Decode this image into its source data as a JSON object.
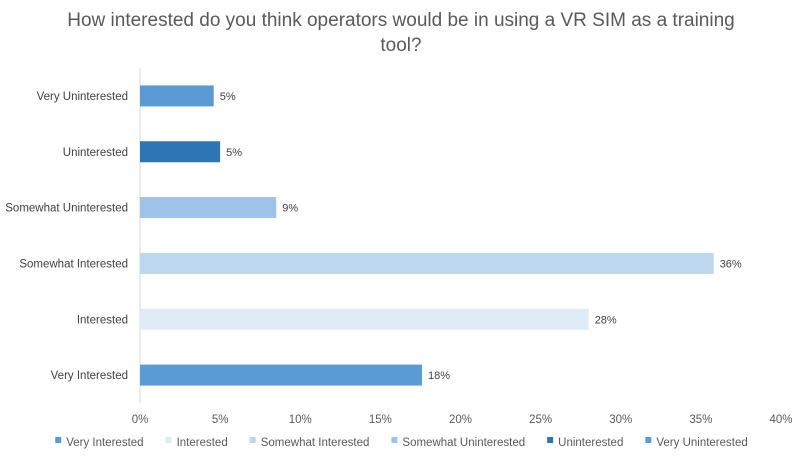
{
  "chart_data": {
    "type": "bar",
    "orientation": "horizontal",
    "title": "How interested do you think operators would be in using a VR SIM as a training tool?",
    "title_lines": [
      "How interested do you think operators would be in using a VR SIM as a training",
      "tool?"
    ],
    "categories": [
      "Very Interested",
      "Interested",
      "Somewhat Interested",
      "Somewhat Uninterested",
      "Uninterested",
      "Very Uninterested"
    ],
    "values": [
      17.6,
      28.0,
      35.8,
      8.5,
      5.0,
      4.6
    ],
    "data_labels": [
      "18%",
      "28%",
      "36%",
      "9%",
      "5%",
      "5%"
    ],
    "colors": [
      "#5b9bd5",
      "#deebf7",
      "#bdd7ee",
      "#9dc3e6",
      "#2e75b6",
      "#5b9bd5"
    ],
    "xlim": [
      0,
      40
    ],
    "x_ticks": [
      0,
      5,
      10,
      15,
      20,
      25,
      30,
      35,
      40
    ],
    "x_tick_labels": [
      "0%",
      "5%",
      "10%",
      "15%",
      "20%",
      "25%",
      "30%",
      "35%",
      "40%"
    ],
    "xlabel": "",
    "ylabel": "",
    "grid": false,
    "legend_position": "bottom"
  }
}
